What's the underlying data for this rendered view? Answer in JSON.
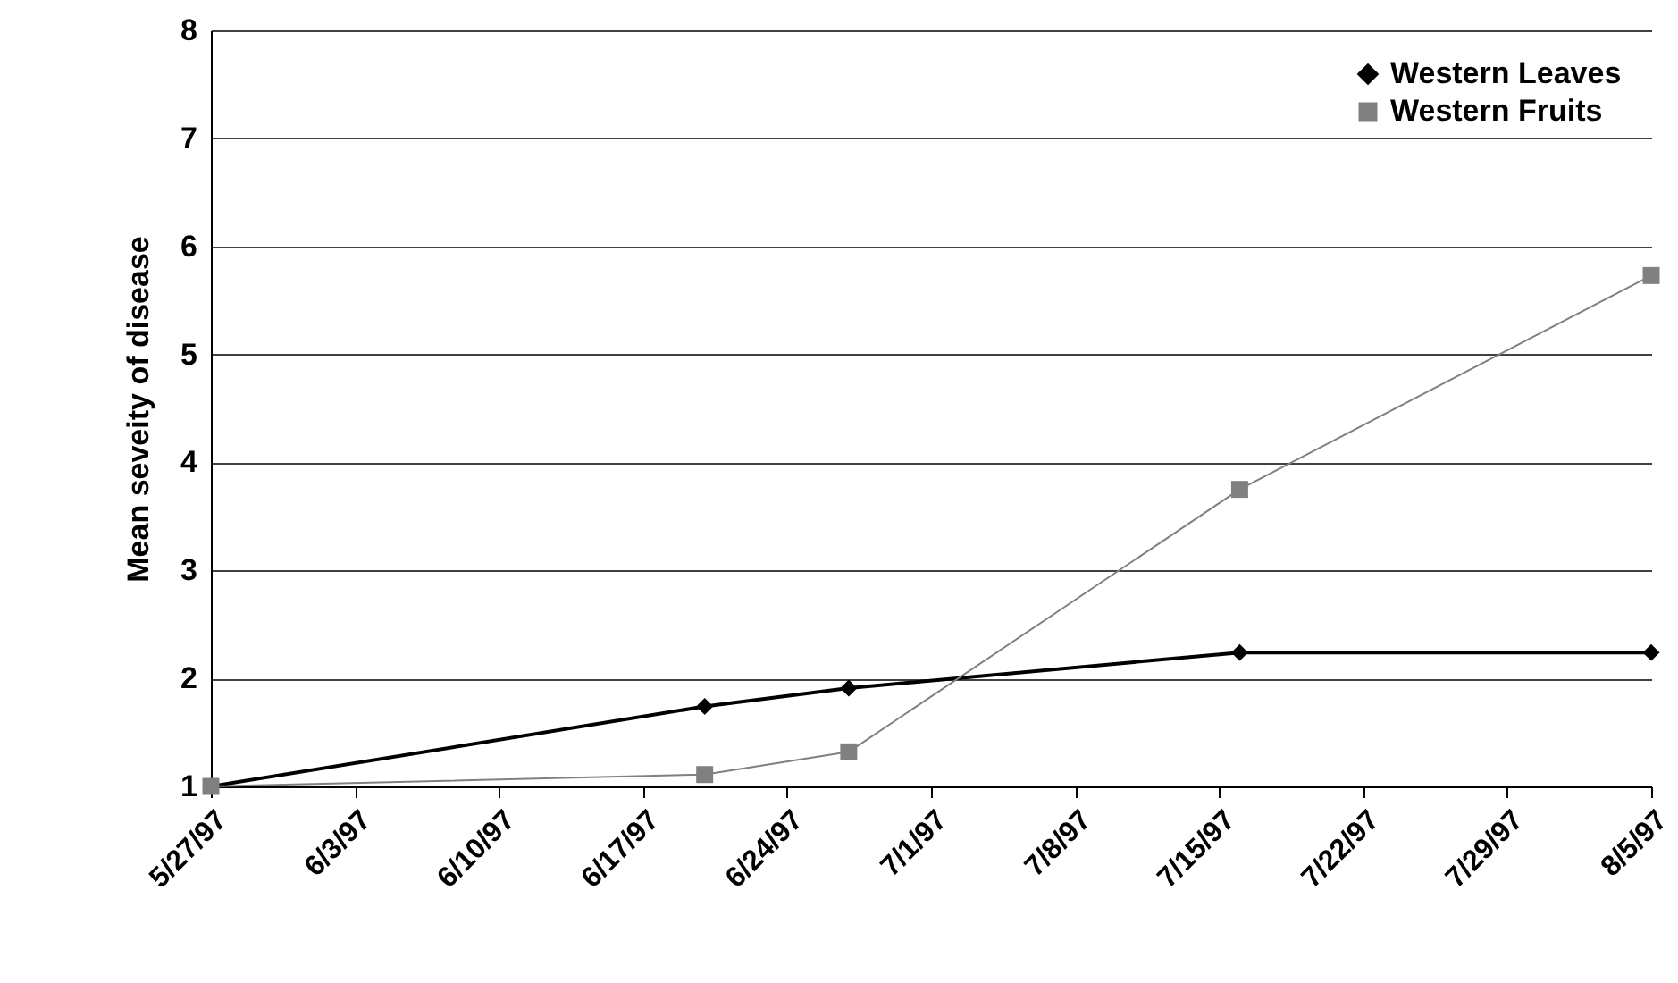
{
  "chart_data": {
    "type": "line",
    "ylabel": "Mean seveity of disease",
    "x": [
      "1997-05-27",
      "1997-06-20",
      "1997-06-27",
      "1997-07-16",
      "1997-08-05"
    ],
    "series": [
      {
        "name": "Western Leaves",
        "color": "#000000",
        "marker": "diamond",
        "values": [
          1,
          1.74,
          1.91,
          2.24,
          2.24
        ]
      },
      {
        "name": "Western Fruits",
        "color": "#808080",
        "marker": "square",
        "values": [
          1,
          1.11,
          1.32,
          3.75,
          5.73
        ]
      }
    ],
    "xlim": [
      "1997-05-27",
      "1997-08-05"
    ],
    "xticks": [
      {
        "value": "1997-05-27",
        "label": "5/27/97"
      },
      {
        "value": "1997-06-03",
        "label": "6/3/97"
      },
      {
        "value": "1997-06-10",
        "label": "6/10/97"
      },
      {
        "value": "1997-06-17",
        "label": "6/17/97"
      },
      {
        "value": "1997-06-24",
        "label": "6/24/97"
      },
      {
        "value": "1997-07-01",
        "label": "7/1/97"
      },
      {
        "value": "1997-07-08",
        "label": "7/8/97"
      },
      {
        "value": "1997-07-15",
        "label": "7/15/97"
      },
      {
        "value": "1997-07-22",
        "label": "7/22/97"
      },
      {
        "value": "1997-07-29",
        "label": "7/29/97"
      },
      {
        "value": "1997-08-05",
        "label": "8/5/97"
      }
    ],
    "ylim": [
      1,
      8
    ],
    "yticks": [
      1,
      2,
      3,
      4,
      5,
      6,
      7,
      8
    ],
    "grid": "y",
    "legend": "top right"
  }
}
